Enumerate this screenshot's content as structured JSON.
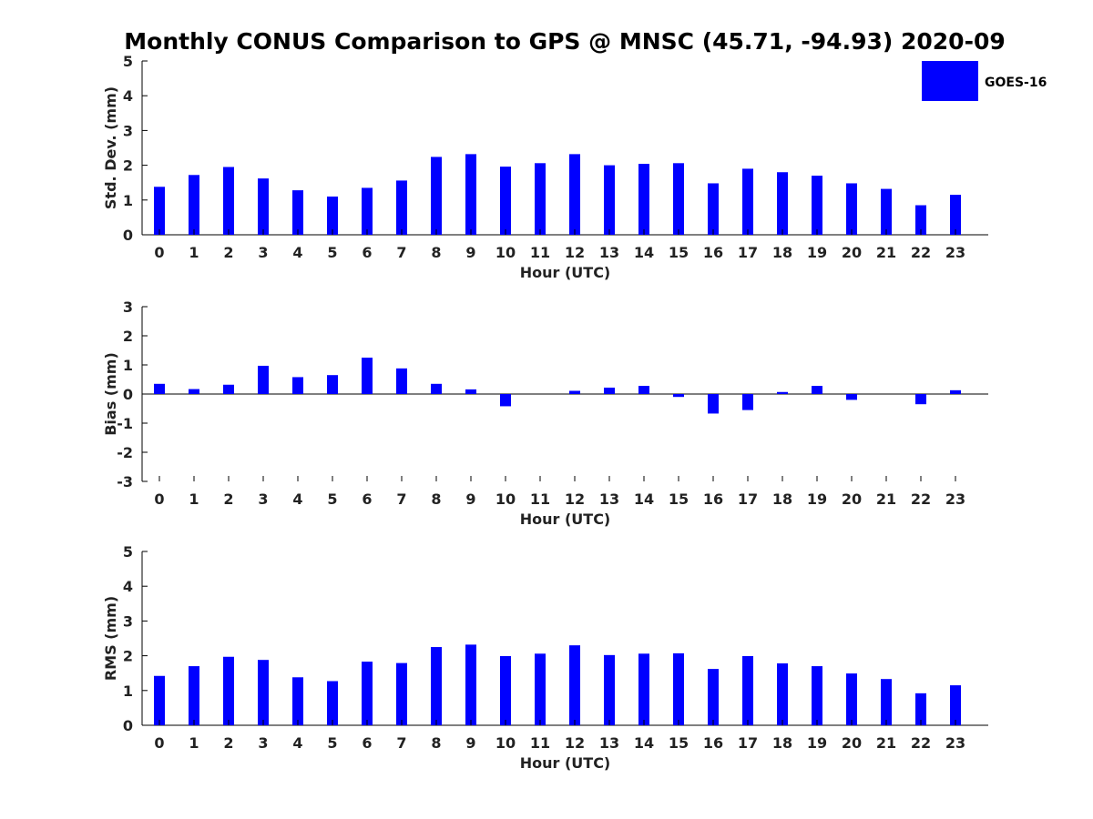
{
  "title": "Monthly CONUS Comparison to GPS @ MNSC (45.71, -94.93) 2020-09",
  "legend": {
    "label": "GOES-16",
    "color": "#0000ff"
  },
  "chart_data": [
    {
      "type": "bar",
      "title": "Monthly CONUS Comparison to GPS @ MNSC (45.71, -94.93) 2020-09",
      "xlabel": "Hour (UTC)",
      "ylabel": "Std. Dev. (mm)",
      "ylim": [
        0,
        5
      ],
      "yticks": [
        0,
        1,
        2,
        3,
        4,
        5
      ],
      "categories": [
        "0",
        "1",
        "2",
        "3",
        "4",
        "5",
        "6",
        "7",
        "8",
        "9",
        "10",
        "11",
        "12",
        "13",
        "14",
        "15",
        "16",
        "17",
        "18",
        "19",
        "20",
        "21",
        "22",
        "23"
      ],
      "series": [
        {
          "name": "GOES-16",
          "color": "#0000ff",
          "values": [
            1.38,
            1.72,
            1.95,
            1.62,
            1.28,
            1.1,
            1.35,
            1.56,
            2.24,
            2.32,
            1.96,
            2.06,
            2.32,
            2.0,
            2.04,
            2.06,
            1.48,
            1.9,
            1.8,
            1.7,
            1.48,
            1.32,
            0.85,
            1.15
          ]
        }
      ]
    },
    {
      "type": "bar",
      "xlabel": "Hour (UTC)",
      "ylabel": "Bias (mm)",
      "ylim": [
        -3,
        3
      ],
      "yticks": [
        -3,
        -2,
        -1,
        0,
        1,
        2,
        3
      ],
      "categories": [
        "0",
        "1",
        "2",
        "3",
        "4",
        "5",
        "6",
        "7",
        "8",
        "9",
        "10",
        "11",
        "12",
        "13",
        "14",
        "15",
        "16",
        "17",
        "18",
        "19",
        "20",
        "21",
        "22",
        "23"
      ],
      "series": [
        {
          "name": "GOES-16",
          "color": "#0000ff",
          "values": [
            0.35,
            0.17,
            0.32,
            0.97,
            0.58,
            0.65,
            1.25,
            0.88,
            0.35,
            0.16,
            -0.42,
            0.0,
            0.11,
            0.22,
            0.28,
            -0.1,
            -0.67,
            -0.55,
            0.07,
            0.28,
            -0.2,
            0.0,
            -0.35,
            0.13
          ]
        }
      ]
    },
    {
      "type": "bar",
      "xlabel": "Hour (UTC)",
      "ylabel": "RMS (mm)",
      "ylim": [
        0,
        5
      ],
      "yticks": [
        0,
        1,
        2,
        3,
        4,
        5
      ],
      "categories": [
        "0",
        "1",
        "2",
        "3",
        "4",
        "5",
        "6",
        "7",
        "8",
        "9",
        "10",
        "11",
        "12",
        "13",
        "14",
        "15",
        "16",
        "17",
        "18",
        "19",
        "20",
        "21",
        "22",
        "23"
      ],
      "series": [
        {
          "name": "GOES-16",
          "color": "#0000ff",
          "values": [
            1.42,
            1.7,
            1.97,
            1.88,
            1.38,
            1.27,
            1.83,
            1.79,
            2.25,
            2.32,
            1.99,
            2.06,
            2.3,
            2.02,
            2.06,
            2.07,
            1.62,
            1.99,
            1.78,
            1.7,
            1.49,
            1.33,
            0.92,
            1.15
          ]
        }
      ]
    }
  ]
}
